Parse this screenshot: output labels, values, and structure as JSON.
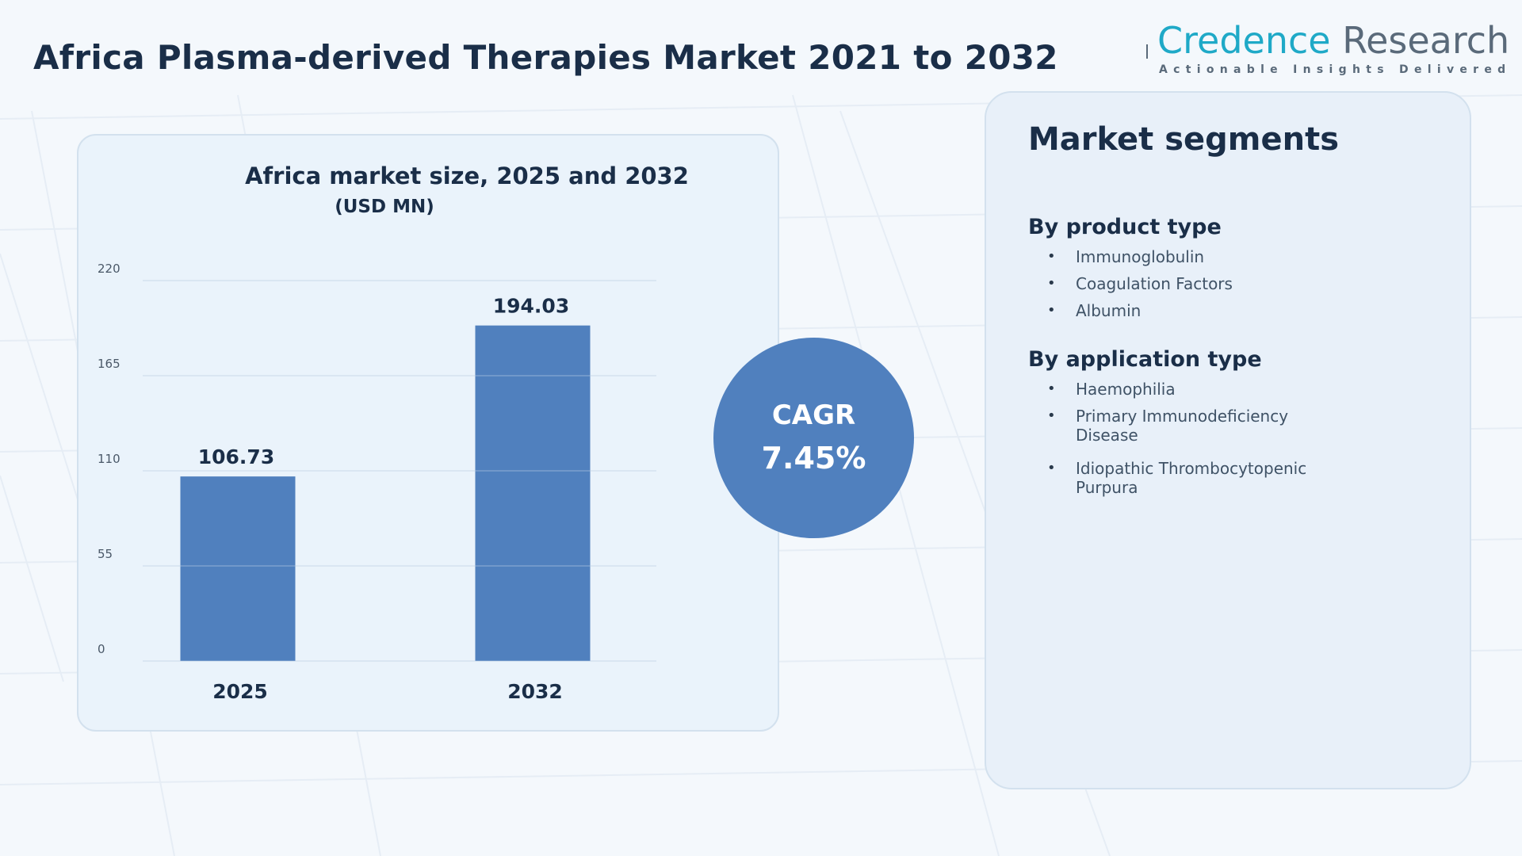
{
  "page": {
    "title": "Africa Plasma-derived Therapies Market 2021 to 2032"
  },
  "logo": {
    "name_part1": "Credence",
    "name_part2": "Research",
    "tagline": "Actionable Insights Delivered",
    "colors": {
      "primary": "#1fa9c7",
      "secondary": "#5a6a7a"
    }
  },
  "chart_data": {
    "type": "bar",
    "title": "Africa market size, 2025 and 2032",
    "subtitle": "(USD MN)",
    "xlabel": "",
    "ylabel": "",
    "categories": [
      "2025",
      "2032"
    ],
    "values": [
      106.73,
      194.03
    ],
    "data_labels": [
      "106.73",
      "194.03"
    ],
    "ylim": [
      0,
      220
    ],
    "yticks": [
      0,
      55,
      110,
      165,
      220
    ],
    "grid": true,
    "bar_color": "#5080be"
  },
  "cagr": {
    "label": "CAGR",
    "value": "7.45%",
    "color": "#5080be"
  },
  "segments": {
    "title": "Market segments",
    "groups": [
      {
        "heading": "By product type",
        "items": [
          "Immunoglobulin",
          "Coagulation Factors",
          "Albumin"
        ]
      },
      {
        "heading": "By application type",
        "items": [
          "Haemophilia",
          "Primary Immunodeficiency Disease",
          "Idiopathic Thrombocytopenic Purpura"
        ]
      }
    ]
  }
}
